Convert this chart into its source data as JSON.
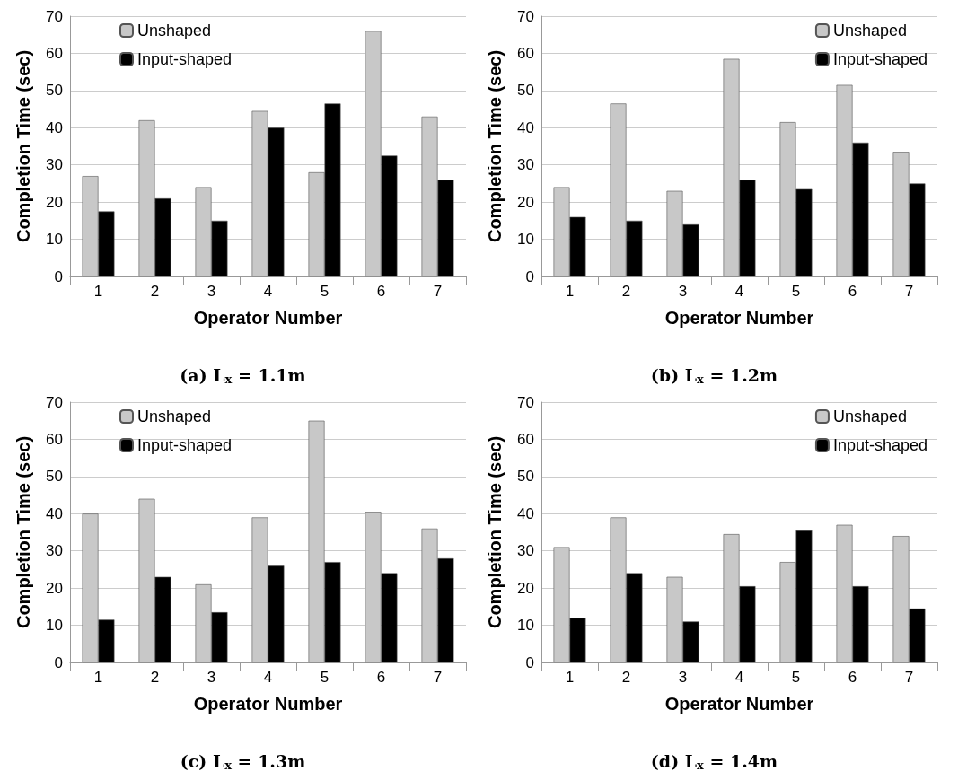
{
  "chart_data": [
    {
      "type": "bar",
      "title": "(a) L$_{x}$ = 1.1m",
      "xlabel": "Operator Number",
      "ylabel": "Completion Time (sec)",
      "categories": [
        "1",
        "2",
        "3",
        "4",
        "5",
        "6",
        "7"
      ],
      "series": [
        {
          "name": "Unshaped",
          "color": "#c8c8c8",
          "values": [
            27,
            42,
            24,
            44.5,
            28,
            66,
            43
          ]
        },
        {
          "name": "Input-shaped",
          "color": "#000000",
          "values": [
            17.5,
            21,
            15,
            40,
            46.5,
            32.5,
            26
          ]
        }
      ],
      "ylim": [
        0,
        70
      ],
      "yticks": [
        0,
        10,
        20,
        30,
        40,
        50,
        60,
        70
      ],
      "grid": "y",
      "legend": "top left"
    },
    {
      "type": "bar",
      "title": "(b) L$_{x}$ = 1.2m",
      "xlabel": "Operator Number",
      "ylabel": "Completion Time (sec)",
      "categories": [
        "1",
        "2",
        "3",
        "4",
        "5",
        "6",
        "7"
      ],
      "series": [
        {
          "name": "Unshaped",
          "color": "#c8c8c8",
          "values": [
            24,
            46.5,
            23,
            58.5,
            41.5,
            51.5,
            33.5
          ]
        },
        {
          "name": "Input-shaped",
          "color": "#000000",
          "values": [
            16,
            15,
            14,
            26,
            23.5,
            36,
            25
          ]
        }
      ],
      "ylim": [
        0,
        70
      ],
      "yticks": [
        0,
        10,
        20,
        30,
        40,
        50,
        60,
        70
      ],
      "grid": "y",
      "legend": "top right"
    },
    {
      "type": "bar",
      "title": "(c) L$_{x}$ = 1.3m",
      "xlabel": "Operator Number",
      "ylabel": "Completion Time (sec)",
      "categories": [
        "1",
        "2",
        "3",
        "4",
        "5",
        "6",
        "7"
      ],
      "series": [
        {
          "name": "Unshaped",
          "color": "#c8c8c8",
          "values": [
            40,
            44,
            21,
            39,
            65,
            40.5,
            36
          ]
        },
        {
          "name": "Input-shaped",
          "color": "#000000",
          "values": [
            11.5,
            23,
            13.5,
            26,
            27,
            24,
            28
          ]
        }
      ],
      "ylim": [
        0,
        70
      ],
      "yticks": [
        0,
        10,
        20,
        30,
        40,
        50,
        60,
        70
      ],
      "grid": "y",
      "legend": "top left"
    },
    {
      "type": "bar",
      "title": "(d) L$_{x}$ = 1.4m",
      "xlabel": "Operator Number",
      "ylabel": "Completion Time (sec)",
      "categories": [
        "1",
        "2",
        "3",
        "4",
        "5",
        "6",
        "7"
      ],
      "series": [
        {
          "name": "Unshaped",
          "color": "#c8c8c8",
          "values": [
            31,
            39,
            23,
            34.5,
            27,
            37,
            34
          ]
        },
        {
          "name": "Input-shaped",
          "color": "#000000",
          "values": [
            12,
            24,
            11,
            20.5,
            35.5,
            20.5,
            14.5
          ]
        }
      ],
      "ylim": [
        0,
        70
      ],
      "yticks": [
        0,
        10,
        20,
        30,
        40,
        50,
        60,
        70
      ],
      "grid": "y",
      "legend": "top right"
    }
  ]
}
